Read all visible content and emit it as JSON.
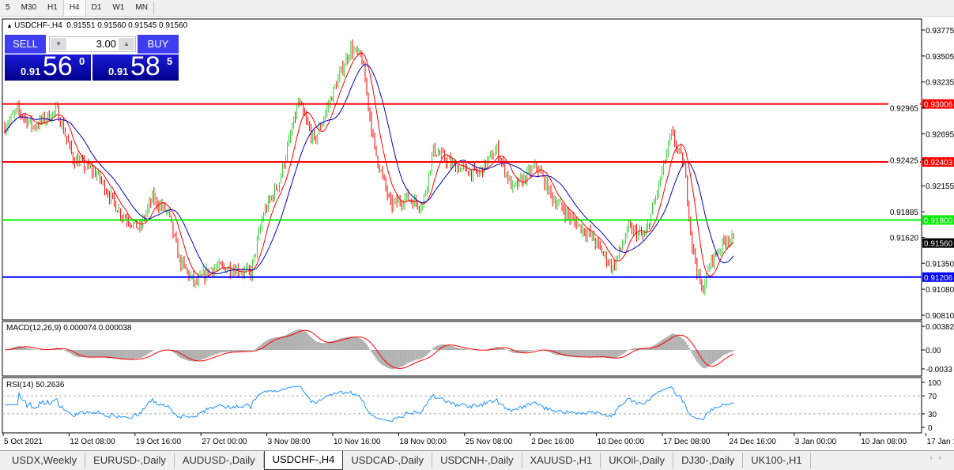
{
  "toolbar": {
    "timeframes": [
      "5",
      "M30",
      "H1",
      "H4",
      "D1",
      "W1",
      "MN"
    ],
    "active": "H4"
  },
  "chart_header": {
    "symbol": "USDCHF-,H4",
    "ohlc": "0.91551 0.91560 0.91545 0.91560"
  },
  "trade_panel": {
    "sell_label": "SELL",
    "buy_label": "BUY",
    "volume": "3.00",
    "sell_prefix": "0.91",
    "sell_big": "56",
    "sell_sup": "0",
    "buy_prefix": "0.91",
    "buy_big": "58",
    "buy_sup": "5"
  },
  "price_axis": {
    "ticks": [
      "0.93775",
      "0.93505",
      "0.93235",
      "0.92965",
      "0.92695",
      "0.92425",
      "0.92155",
      "0.91885",
      "0.91620",
      "0.91350",
      "0.91080",
      "0.90810"
    ],
    "range": [
      0.9081,
      0.93775
    ]
  },
  "hlines": [
    {
      "price": "0.93006",
      "color": "#ff0000"
    },
    {
      "price": "0.92403",
      "color": "#ff0000"
    },
    {
      "price": "0.91800",
      "color": "#00ee00"
    },
    {
      "price": "0.91206",
      "color": "#0000ff"
    }
  ],
  "current_price": "0.91560",
  "colors": {
    "up": "#32cd32",
    "down": "#ff0000",
    "ma_fast": "#ff0000",
    "ma_slow": "#0000cc",
    "macd_hist": "#b0b0b0",
    "macd_signal": "#ff0000",
    "rsi": "#1e90ff"
  },
  "chart_data": {
    "type": "bar",
    "bars": 460,
    "approx_close_path": [
      [
        0,
        0.9277
      ],
      [
        8,
        0.9294
      ],
      [
        18,
        0.9277
      ],
      [
        33,
        0.9294
      ],
      [
        43,
        0.9244
      ],
      [
        58,
        0.9228
      ],
      [
        73,
        0.9187
      ],
      [
        85,
        0.9171
      ],
      [
        93,
        0.9203
      ],
      [
        103,
        0.9187
      ],
      [
        110,
        0.9138
      ],
      [
        120,
        0.9113
      ],
      [
        130,
        0.913
      ],
      [
        143,
        0.913
      ],
      [
        155,
        0.9125
      ],
      [
        163,
        0.9187
      ],
      [
        173,
        0.922
      ],
      [
        185,
        0.9302
      ],
      [
        195,
        0.9261
      ],
      [
        208,
        0.9318
      ],
      [
        218,
        0.9359
      ],
      [
        225,
        0.9347
      ],
      [
        233,
        0.9253
      ],
      [
        243,
        0.9195
      ],
      [
        253,
        0.9203
      ],
      [
        263,
        0.9195
      ],
      [
        270,
        0.9253
      ],
      [
        283,
        0.9236
      ],
      [
        298,
        0.9228
      ],
      [
        310,
        0.9253
      ],
      [
        320,
        0.9212
      ],
      [
        335,
        0.9236
      ],
      [
        345,
        0.9203
      ],
      [
        358,
        0.9179
      ],
      [
        370,
        0.9162
      ],
      [
        383,
        0.913
      ],
      [
        393,
        0.9171
      ],
      [
        403,
        0.9162
      ],
      [
        410,
        0.9203
      ],
      [
        420,
        0.9269
      ],
      [
        428,
        0.9236
      ],
      [
        433,
        0.9154
      ],
      [
        439,
        0.9105
      ],
      [
        445,
        0.9138
      ],
      [
        455,
        0.9162
      ],
      [
        461,
        0.9156
      ]
    ]
  },
  "x_axis": {
    "labels": [
      "5 Oct 2021",
      "12 Oct 08:00",
      "19 Oct 16:00",
      "27 Oct 00:00",
      "3 Nov 08:00",
      "10 Nov 16:00",
      "18 Nov 00:00",
      "25 Nov 08:00",
      "2 Dec 16:00",
      "10 Dec 00:00",
      "17 Dec 08:00",
      "24 Dec 16:00",
      "3 Jan 00:00",
      "10 Jan 08:00",
      "17 Jan 16:00"
    ]
  },
  "macd": {
    "label": "MACD(12,26,9) 0.000074 0.000038",
    "ticks": [
      "0.00382",
      "0.00",
      "-0.0033"
    ]
  },
  "rsi": {
    "label": "RSI(14) 50.2636",
    "ticks": [
      "100",
      "70",
      "30",
      "0"
    ]
  },
  "tabs": [
    "USDX,Weekly",
    "EURUSD-,Daily",
    "AUDUSD-,Daily",
    "USDCHF-,H4",
    "USDCAD-,Daily",
    "USDCNH-,Daily",
    "XAUUSD-,H1",
    "UKOil-,Daily",
    "DJ30-,Daily",
    "UK100-,H1"
  ],
  "active_tab": "USDCHF-,H4"
}
